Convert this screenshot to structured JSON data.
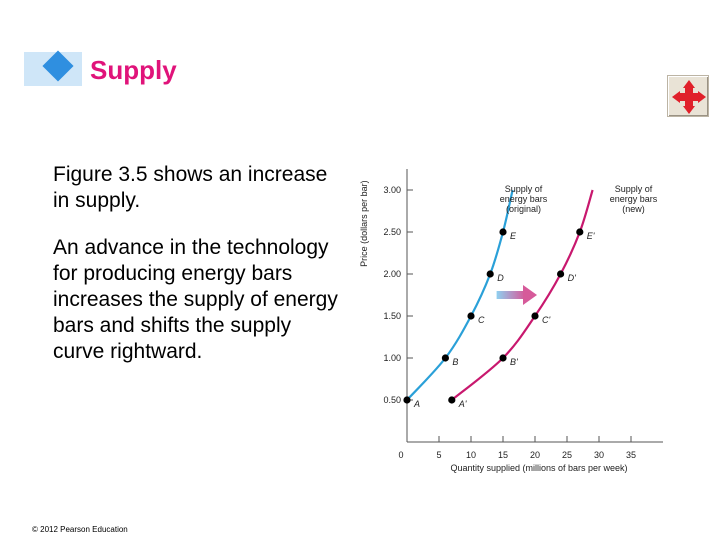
{
  "slide": {
    "title": "Supply",
    "paragraphs": [
      "Figure 3.5 shows an increase in supply.",
      "An advance in the technology for producing energy bars increases the supply of energy bars and shifts the supply curve rightward."
    ],
    "copyright": "© 2012 Pearson Education"
  },
  "nav_button": {
    "icon": "move-arrows-icon"
  },
  "colors": {
    "title": "#e0137a",
    "diamond": "#2f8fe0",
    "original_curve": "#2aa0d8",
    "new_curve": "#c8186e",
    "arrow": "#d65a9a",
    "points": "#000000"
  },
  "chart_data": {
    "type": "line",
    "xlabel": "Quantity supplied (millions of bars per week)",
    "ylabel": "Price (dollars per bar)",
    "xlim": [
      0,
      40
    ],
    "ylim": [
      0,
      3.25
    ],
    "x_ticks": [
      0,
      5,
      10,
      15,
      20,
      25,
      30,
      35
    ],
    "y_ticks": [
      0.5,
      1.0,
      1.5,
      2.0,
      2.5,
      3.0
    ],
    "x_tick_labels": [
      "0",
      "5",
      "10",
      "15",
      "20",
      "25",
      "30",
      "35"
    ],
    "y_tick_labels": [
      "0.50",
      "1.00",
      "1.50",
      "2.00",
      "2.50",
      "3.00"
    ],
    "series": [
      {
        "name": "Supply of energy bars (original)",
        "label": [
          "Supply of",
          "energy bars",
          "(original)"
        ],
        "color": "#2aa0d8",
        "x": [
          0,
          6,
          10,
          13,
          15,
          16.5
        ],
        "y": [
          0.5,
          1.0,
          1.5,
          2.0,
          2.5,
          3.0
        ],
        "points": [
          {
            "label": "A",
            "x": 0,
            "y": 0.5
          },
          {
            "label": "B",
            "x": 6,
            "y": 1.0
          },
          {
            "label": "C",
            "x": 10,
            "y": 1.5
          },
          {
            "label": "D",
            "x": 13,
            "y": 2.0
          },
          {
            "label": "E",
            "x": 15,
            "y": 2.5
          }
        ]
      },
      {
        "name": "Supply of energy bars (new)",
        "label": [
          "Supply of",
          "energy bars",
          "(new)"
        ],
        "color": "#c8186e",
        "x": [
          7,
          15,
          20,
          24,
          27,
          29
        ],
        "y": [
          0.5,
          1.0,
          1.5,
          2.0,
          2.5,
          3.0
        ],
        "points": [
          {
            "label": "A'",
            "x": 7,
            "y": 0.5
          },
          {
            "label": "B'",
            "x": 15,
            "y": 1.0
          },
          {
            "label": "C'",
            "x": 20,
            "y": 1.5
          },
          {
            "label": "D'",
            "x": 24,
            "y": 2.0
          },
          {
            "label": "E'",
            "x": 27,
            "y": 2.5
          }
        ]
      }
    ],
    "annotations": [
      {
        "type": "arrow",
        "from": [
          14,
          1.75
        ],
        "to": [
          20,
          1.75
        ],
        "color": "#d65a9a"
      }
    ]
  }
}
